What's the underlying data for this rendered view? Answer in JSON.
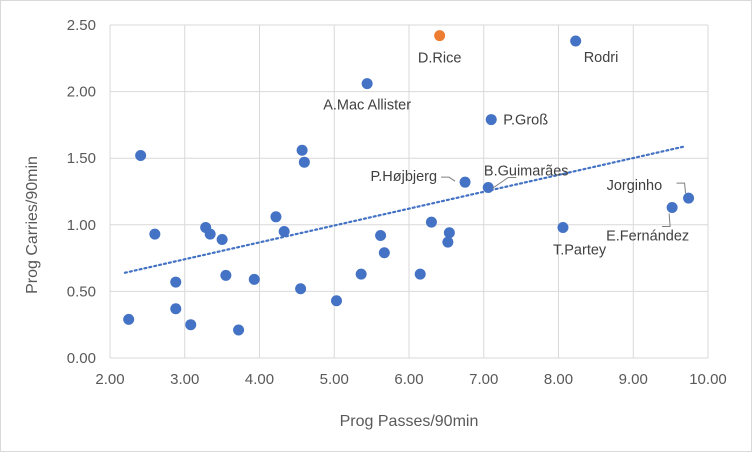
{
  "chart_data": {
    "type": "scatter",
    "xlabel": "Prog Passes/90min",
    "ylabel": "Prog Carries/90min",
    "xlim": [
      2.0,
      10.0
    ],
    "ylim": [
      0.0,
      2.5
    ],
    "x_ticks": [
      "2.00",
      "3.00",
      "4.00",
      "5.00",
      "6.00",
      "7.00",
      "8.00",
      "9.00",
      "10.00"
    ],
    "y_ticks": [
      "0.00",
      "0.50",
      "1.00",
      "1.50",
      "2.00",
      "2.50"
    ],
    "grid": true,
    "colors": {
      "points": "#4472c4",
      "highlight": "#ed7d31",
      "trendline": "#4472c4",
      "grid": "#d9d9d9"
    },
    "trendline": {
      "style": "dotted",
      "x": [
        2.2,
        9.7
      ],
      "y": [
        0.64,
        1.59
      ]
    },
    "series": [
      {
        "points": [
          {
            "x": 2.25,
            "y": 0.29
          },
          {
            "x": 2.41,
            "y": 1.52
          },
          {
            "x": 2.6,
            "y": 0.93
          },
          {
            "x": 2.88,
            "y": 0.57
          },
          {
            "x": 2.88,
            "y": 0.37
          },
          {
            "x": 3.08,
            "y": 0.25
          },
          {
            "x": 3.28,
            "y": 0.98
          },
          {
            "x": 3.34,
            "y": 0.93
          },
          {
            "x": 3.5,
            "y": 0.89
          },
          {
            "x": 3.55,
            "y": 0.62
          },
          {
            "x": 3.72,
            "y": 0.21
          },
          {
            "x": 3.93,
            "y": 0.59
          },
          {
            "x": 4.22,
            "y": 1.06
          },
          {
            "x": 4.33,
            "y": 0.95
          },
          {
            "x": 4.55,
            "y": 0.52
          },
          {
            "x": 4.57,
            "y": 1.56
          },
          {
            "x": 4.6,
            "y": 1.47
          },
          {
            "x": 5.03,
            "y": 0.43
          },
          {
            "x": 5.36,
            "y": 0.63
          },
          {
            "x": 5.44,
            "y": 2.06,
            "label": "A.Mac Allister"
          },
          {
            "x": 5.62,
            "y": 0.92
          },
          {
            "x": 5.67,
            "y": 0.79
          },
          {
            "x": 6.15,
            "y": 0.63
          },
          {
            "x": 6.3,
            "y": 1.02
          },
          {
            "x": 6.52,
            "y": 0.87
          },
          {
            "x": 6.54,
            "y": 0.94
          },
          {
            "x": 6.75,
            "y": 1.32,
            "label": "P.Højbjerg"
          },
          {
            "x": 7.06,
            "y": 1.28,
            "label": "B.Guimarães"
          },
          {
            "x": 7.1,
            "y": 1.79,
            "label": "P.Groß"
          },
          {
            "x": 8.06,
            "y": 0.98,
            "label": "T.Partey"
          },
          {
            "x": 8.23,
            "y": 2.38,
            "label": "Rodri"
          },
          {
            "x": 9.52,
            "y": 1.13,
            "label": "E.Fernández"
          },
          {
            "x": 9.74,
            "y": 1.2,
            "label": "Jorginho"
          }
        ]
      },
      {
        "highlight": true,
        "points": [
          {
            "x": 6.41,
            "y": 2.42,
            "label": "D.Rice"
          }
        ]
      }
    ]
  }
}
